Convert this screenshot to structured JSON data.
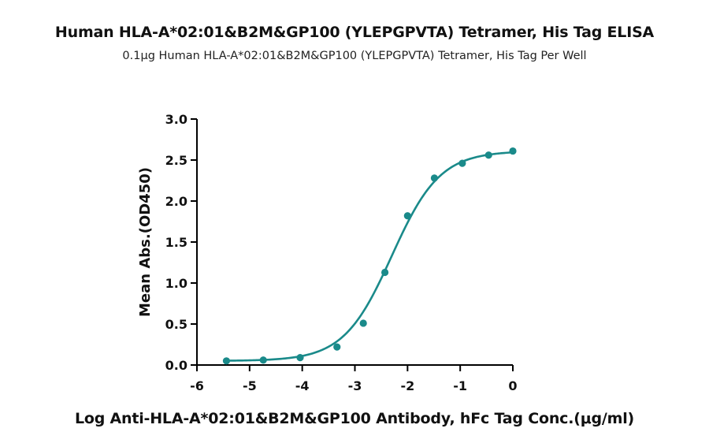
{
  "chart_data": {
    "type": "scatter",
    "title": "Human HLA-A*02:01&B2M&GP100 (YLEPGPVTA) Tetramer, His Tag ELISA",
    "subtitle": "0.1μg Human HLA-A*02:01&B2M&GP100 (YLEPGPVTA) Tetramer, His Tag Per Well",
    "xlabel": "Log Anti-HLA-A*02:01&B2M&GP100 Antibody, hFc Tag Conc.(μg/ml)",
    "ylabel": "Mean Abs.(OD450)",
    "xlim": [
      -6,
      0
    ],
    "ylim": [
      0,
      3.0
    ],
    "xticks": [
      "-6",
      "-5",
      "-4",
      "-3",
      "-2",
      "-1",
      "0"
    ],
    "yticks": [
      "0.0",
      "0.5",
      "1.0",
      "1.5",
      "2.0",
      "2.5",
      "3.0"
    ],
    "grid": false,
    "color": "#1a8a8a",
    "series": [
      {
        "x": [
          -5.44,
          -4.74,
          -4.04,
          -3.34,
          -2.84,
          -2.43,
          -2.0,
          -1.49,
          -0.96,
          -0.46,
          0.0
        ],
        "y": [
          0.05,
          0.06,
          0.09,
          0.22,
          0.51,
          1.13,
          1.82,
          2.28,
          2.46,
          2.56,
          2.61
        ]
      }
    ],
    "fit": {
      "bottom": 0.05,
      "top": 2.61,
      "logEC50": -2.3,
      "hill": 0.95
    }
  }
}
